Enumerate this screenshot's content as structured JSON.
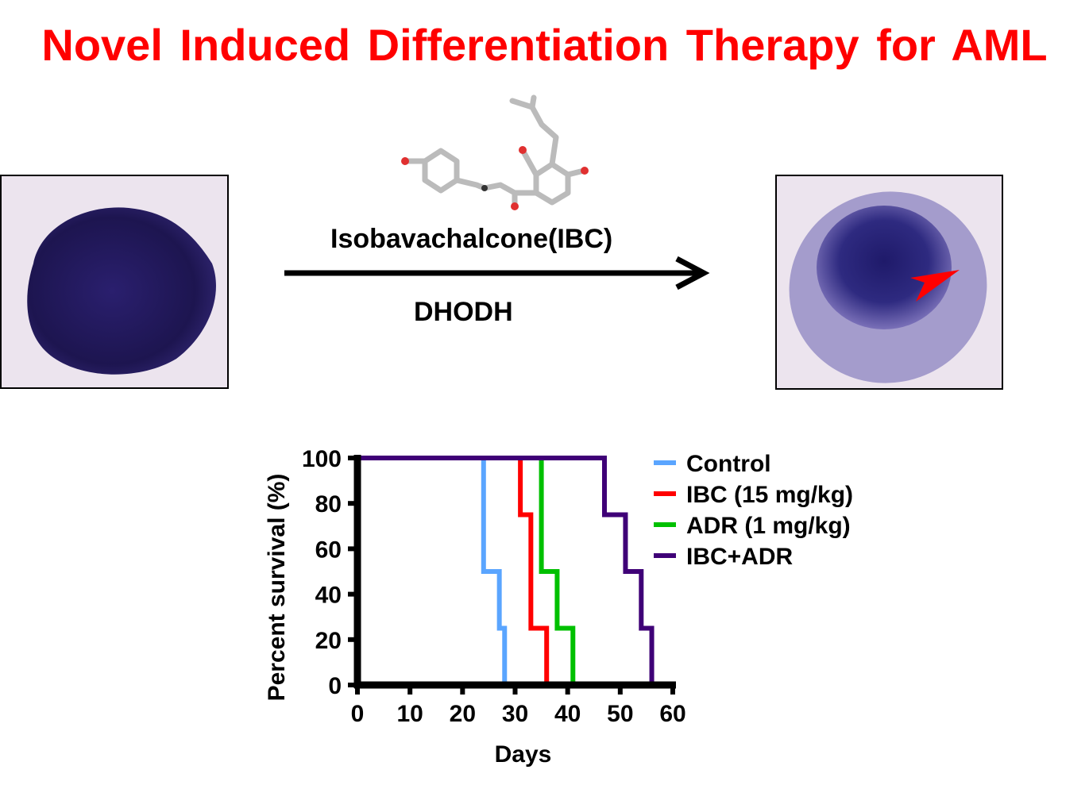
{
  "title": "Novel Induced Differentiation Therapy for AML",
  "compound_label": "Isobavachalcone(IBC)",
  "target_label": "DHODH",
  "colors": {
    "title": "#ff0000",
    "control": "#5aa5ff",
    "ibc": "#ff0000",
    "adr": "#00c000",
    "ibc_adr": "#3f0077"
  },
  "icons": {
    "arrow": "right-arrow-icon",
    "molecule": "ibc-molecule-structure",
    "cell_before": "aml-cell-image",
    "cell_after": "differentiated-cell-image",
    "pointer": "red-arrow-icon"
  },
  "chart_data": {
    "type": "line",
    "subtype": "kaplan-meier-step",
    "xlabel": "Days",
    "ylabel": "Percent survival (%)",
    "xlim": [
      0,
      60
    ],
    "ylim": [
      0,
      100
    ],
    "xticks": [
      0,
      10,
      20,
      30,
      40,
      50,
      60
    ],
    "yticks": [
      0,
      20,
      40,
      60,
      80,
      100
    ],
    "grid": false,
    "legend": "right",
    "series": [
      {
        "name": "Control",
        "color": "#5aa5ff",
        "x": [
          0,
          24,
          27,
          28
        ],
        "y": [
          100,
          50,
          25,
          0
        ]
      },
      {
        "name": "IBC (15 mg/kg)",
        "color": "#ff0000",
        "x": [
          0,
          31,
          33,
          36
        ],
        "y": [
          100,
          75,
          25,
          0
        ]
      },
      {
        "name": "ADR (1 mg/kg)",
        "color": "#00c000",
        "x": [
          0,
          35,
          38,
          41
        ],
        "y": [
          100,
          50,
          25,
          0
        ]
      },
      {
        "name": "IBC+ADR",
        "color": "#3f0077",
        "x": [
          0,
          47,
          51,
          54,
          56
        ],
        "y": [
          100,
          75,
          50,
          25,
          0
        ]
      }
    ]
  }
}
